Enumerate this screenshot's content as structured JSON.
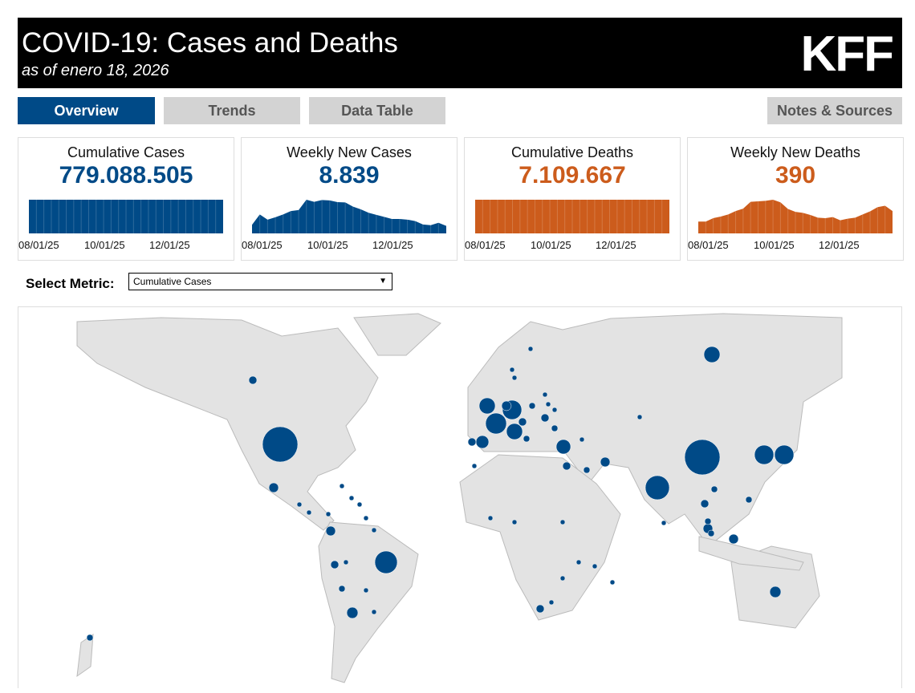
{
  "header": {
    "title": "COVID-19: Cases and Deaths",
    "subtitle": "as of enero 18, 2026",
    "logo": "KFF"
  },
  "tabs": [
    {
      "label": "Overview"
    },
    {
      "label": "Trends"
    },
    {
      "label": "Data Table"
    },
    {
      "label": "Notes & Sources"
    }
  ],
  "cards": [
    {
      "label": "Cumulative Cases",
      "value": "779.088.505",
      "color": "#004a87",
      "ticks": [
        "08/01/25",
        "10/01/25",
        "12/01/25"
      ],
      "series": [
        1,
        1,
        1,
        1,
        1,
        1,
        1,
        1,
        1,
        1,
        1,
        1,
        1,
        1,
        1,
        1,
        1,
        1,
        1,
        1,
        1,
        1,
        1,
        1,
        1,
        1,
        1
      ]
    },
    {
      "label": "Weekly New Cases",
      "value": "8.839",
      "color": "#004a87",
      "ticks": [
        "08/01/25",
        "10/01/25",
        "12/01/25"
      ],
      "series": [
        0.25,
        0.55,
        0.4,
        0.47,
        0.55,
        0.65,
        0.68,
        0.98,
        0.92,
        0.97,
        0.96,
        0.91,
        0.9,
        0.78,
        0.7,
        0.6,
        0.54,
        0.48,
        0.42,
        0.42,
        0.4,
        0.36,
        0.26,
        0.24,
        0.31,
        0.22
      ]
    },
    {
      "label": "Cumulative Deaths",
      "value": "7.109.667",
      "color": "#cc5c1c",
      "ticks": [
        "08/01/25",
        "10/01/25",
        "12/01/25"
      ],
      "series": [
        1,
        1,
        1,
        1,
        1,
        1,
        1,
        1,
        1,
        1,
        1,
        1,
        1,
        1,
        1,
        1,
        1,
        1,
        1,
        1,
        1,
        1,
        1,
        1,
        1,
        1,
        1
      ]
    },
    {
      "label": "Weekly New Deaths",
      "value": "390",
      "color": "#cc5c1c",
      "ticks": [
        "08/01/25",
        "10/01/25",
        "12/01/25"
      ],
      "series": [
        0.45,
        0.45,
        0.58,
        0.64,
        0.72,
        0.85,
        0.94,
        1.2,
        1.22,
        1.24,
        1.28,
        1.18,
        0.93,
        0.82,
        0.78,
        0.7,
        0.6,
        0.58,
        0.62,
        0.5,
        0.56,
        0.6,
        0.72,
        0.84,
        1.0,
        1.05,
        0.85
      ]
    }
  ],
  "metric": {
    "label": "Select Metric:",
    "selected": "Cumulative Cases"
  },
  "colors": {
    "bubble": "#004a87",
    "land": "#e3e3e3",
    "border": "#bbbbbb"
  }
}
